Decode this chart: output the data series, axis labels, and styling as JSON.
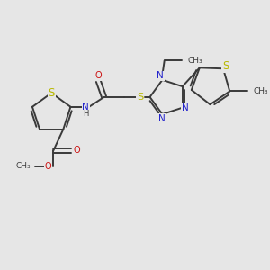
{
  "bg_color": "#e6e6e6",
  "bond_color": "#3a3a3a",
  "N_color": "#2222cc",
  "O_color": "#cc1111",
  "S_color": "#b8b800",
  "font_size": 7.0,
  "line_width": 1.4,
  "figsize": [
    3.0,
    3.0
  ],
  "dpi": 100,
  "xlim": [
    0,
    10
  ],
  "ylim": [
    0,
    10
  ]
}
